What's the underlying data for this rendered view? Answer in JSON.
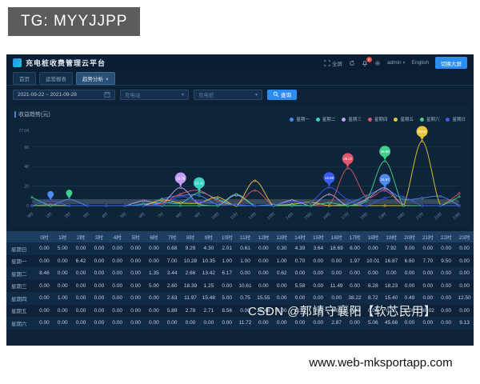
{
  "watermarks": {
    "tg": "TG: MYYJJPP",
    "csdn": "CSDN @郭靖守襄阳【软芯民用】",
    "site": "www.web-mksportapp.com"
  },
  "app": {
    "title": "充电桩收费管理云平台",
    "header": {
      "fullscreen_label": "全屏",
      "bell_badge": "6",
      "user": "admin",
      "user_caret": "▾",
      "language": "English",
      "theme_button": "切换大屏"
    },
    "icons": {
      "logo": "logo-icon",
      "fullscreen": "fullscreen-icon",
      "refresh": "refresh-icon",
      "bell": "bell-icon",
      "gear": "gear-icon",
      "calendar": "calendar-icon",
      "search": "search-icon",
      "chevron": "chevron-down-icon"
    }
  },
  "tabs": [
    {
      "label": "首页",
      "active": false,
      "closable": false
    },
    {
      "label": "运营报表",
      "active": false,
      "closable": false
    },
    {
      "label": "趋势分析",
      "active": true,
      "closable": true,
      "close_glyph": "×"
    }
  ],
  "filters": {
    "date_range": "2021-09-22  ~  2021-09-28",
    "station_placeholder": "充电站",
    "pile_placeholder": "充电桩",
    "search_label": "查询"
  },
  "panel": {
    "title": "收益趋势(元)"
  },
  "chart_data": {
    "type": "line",
    "title": "收益趋势(元)",
    "x": [
      "0时",
      "1时",
      "2时",
      "3时",
      "4时",
      "5时",
      "6时",
      "7时",
      "8时",
      "9时",
      "10时",
      "11时",
      "12时",
      "13时",
      "14时",
      "15时",
      "16时",
      "17时",
      "18时",
      "19时",
      "20时",
      "21时",
      "22时",
      "23时"
    ],
    "ylim": [
      0,
      77.04
    ],
    "yticks": [
      0,
      20,
      40,
      60
    ],
    "ymax_label": "77.04",
    "grid": true,
    "legend_position": "top-right",
    "smooth": true,
    "series": [
      {
        "name": "星期一",
        "color": "#4d8af0",
        "values": [
          0.0,
          0.0,
          6.42,
          0.0,
          0.0,
          0.0,
          0.0,
          7.0,
          10.28,
          10.35,
          1.0,
          1.0,
          0.0,
          1.0,
          0.7,
          0.0,
          0.0,
          1.97,
          10.01,
          16.87,
          6.6,
          7.7,
          9.5,
          0.0
        ]
      },
      {
        "name": "星期二",
        "color": "#38d1c2",
        "values": [
          8.46,
          0.0,
          0.0,
          0.0,
          0.0,
          0.0,
          1.35,
          3.44,
          2.66,
          13.42,
          6.17,
          0.0,
          0.0,
          0.62,
          0.0,
          0.0,
          0.0,
          0.0,
          0.0,
          0.0,
          0.0,
          0.0,
          0.0,
          0.0
        ]
      },
      {
        "name": "星期三",
        "color": "#c29df6",
        "values": [
          0.0,
          0.0,
          0.0,
          0.0,
          0.0,
          0.0,
          5.0,
          2.6,
          18.39,
          1.25,
          0.0,
          10.61,
          0.0,
          0.0,
          5.58,
          0.0,
          11.49,
          0.0,
          6.28,
          18.23,
          0.0,
          0.0,
          0.0,
          0.0
        ]
      },
      {
        "name": "星期四",
        "color": "#e0566b",
        "values": [
          0.0,
          1.0,
          0.0,
          0.0,
          0.0,
          0.0,
          0.0,
          2.63,
          11.97,
          15.48,
          5.0,
          0.75,
          15.55,
          0.0,
          0.0,
          0.0,
          0.0,
          38.22,
          8.72,
          15.4,
          0.49,
          0.0,
          0.0,
          12.5
        ]
      },
      {
        "name": "星期五",
        "color": "#e7c63a",
        "values": [
          0.0,
          0.0,
          0.0,
          0.0,
          0.0,
          0.0,
          0.0,
          5.89,
          2.78,
          2.71,
          8.56,
          0.0,
          25.46,
          0.0,
          1.33,
          3.47,
          0.0,
          0.0,
          0.0,
          0.0,
          0.0,
          66.02,
          0.0,
          0.0
        ]
      },
      {
        "name": "星期六",
        "color": "#3fd08c",
        "values": [
          0.0,
          0.0,
          0.0,
          0.0,
          0.0,
          0.0,
          0.0,
          0.0,
          0.0,
          0.0,
          0.0,
          11.72,
          0.0,
          0.0,
          0.0,
          0.0,
          2.87,
          0.0,
          5.06,
          45.68,
          0.0,
          0.0,
          0.0,
          9.13
        ]
      },
      {
        "name": "星期日",
        "color": "#3d5af1",
        "values": [
          0.0,
          5.0,
          0.0,
          0.0,
          0.0,
          0.0,
          0.0,
          0.68,
          9.29,
          4.3,
          2.01,
          0.61,
          0.0,
          0.3,
          4.39,
          3.64,
          18.69,
          6.0,
          0.0,
          7.92,
          9.0,
          0.0,
          0.0,
          0.0
        ]
      }
    ],
    "extra_pins": [
      {
        "hour": 1,
        "value": 5.0,
        "color": "#4d8af0"
      },
      {
        "hour": 2,
        "value": 6.42,
        "color": "#3fd08c"
      }
    ]
  },
  "table": {
    "corner": "",
    "hour_headers": [
      "0时",
      "1时",
      "2时",
      "3时",
      "4时",
      "5时",
      "6时",
      "7时",
      "8时",
      "9时",
      "10时",
      "11时",
      "12时",
      "13时",
      "14时",
      "15时",
      "16时",
      "17时",
      "18时",
      "19时",
      "20时",
      "21时",
      "22时",
      "23时"
    ],
    "rows": [
      {
        "label": "星期日",
        "values": [
          0.0,
          5.0,
          0.0,
          0.0,
          0.0,
          0.0,
          0.0,
          0.68,
          9.29,
          4.3,
          2.01,
          0.61,
          0.0,
          0.3,
          4.39,
          3.64,
          18.69,
          6.0,
          0.0,
          7.92,
          9.0,
          0.0,
          0.0,
          0.0
        ]
      },
      {
        "label": "星期一",
        "values": [
          0.0,
          0.0,
          6.42,
          0.0,
          0.0,
          0.0,
          0.0,
          7.0,
          10.28,
          10.35,
          1.0,
          1.0,
          0.0,
          1.0,
          0.7,
          0.0,
          0.0,
          1.97,
          10.01,
          16.87,
          6.6,
          7.7,
          9.5,
          0.0
        ]
      },
      {
        "label": "星期二",
        "values": [
          8.46,
          0.0,
          0.0,
          0.0,
          0.0,
          0.0,
          1.35,
          3.44,
          2.66,
          13.42,
          6.17,
          0.0,
          0.0,
          0.62,
          0.0,
          0.0,
          0.0,
          0.0,
          0.0,
          0.0,
          0.0,
          0.0,
          0.0,
          0.0
        ]
      },
      {
        "label": "星期三",
        "values": [
          0.0,
          0.0,
          0.0,
          0.0,
          0.0,
          0.0,
          5.0,
          2.6,
          18.39,
          1.25,
          0.0,
          10.61,
          0.0,
          0.0,
          5.58,
          0.0,
          11.49,
          0.0,
          6.28,
          18.23,
          0.0,
          0.0,
          0.0,
          0.0
        ]
      },
      {
        "label": "星期四",
        "values": [
          0.0,
          1.0,
          0.0,
          0.0,
          0.0,
          0.0,
          0.0,
          2.63,
          11.97,
          15.48,
          5.0,
          0.75,
          15.55,
          0.0,
          0.0,
          0.0,
          0.0,
          38.22,
          8.72,
          15.4,
          0.49,
          0.0,
          0.0,
          12.5
        ]
      },
      {
        "label": "星期五",
        "values": [
          0.0,
          0.0,
          0.0,
          0.0,
          0.0,
          0.0,
          0.0,
          5.89,
          2.78,
          2.71,
          8.56,
          0.0,
          25.46,
          0.0,
          1.33,
          3.47,
          0.0,
          0.0,
          0.0,
          0.0,
          0.0,
          66.02,
          0.0,
          0.0
        ]
      },
      {
        "label": "星期六",
        "values": [
          0.0,
          0.0,
          0.0,
          0.0,
          0.0,
          0.0,
          0.0,
          0.0,
          0.0,
          0.0,
          0.0,
          11.72,
          0.0,
          0.0,
          0.0,
          0.0,
          2.87,
          0.0,
          5.06,
          45.68,
          0.0,
          0.0,
          0.0,
          9.13
        ]
      }
    ]
  }
}
